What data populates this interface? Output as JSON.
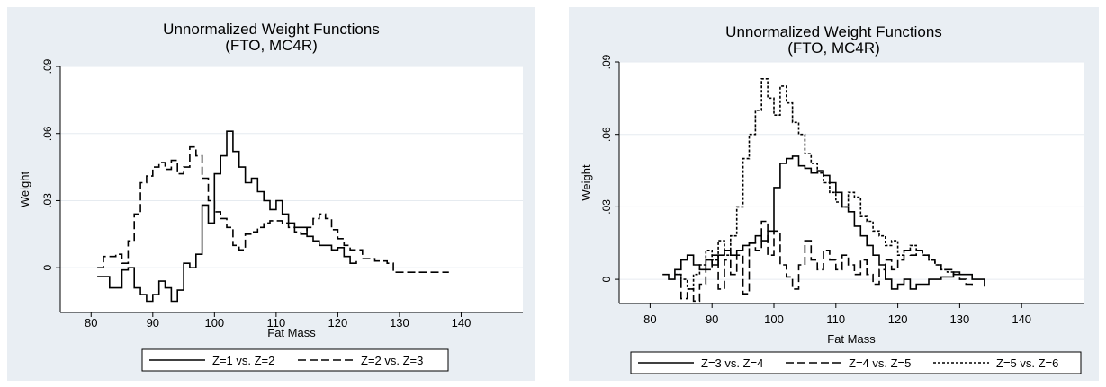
{
  "chart_data": [
    {
      "type": "line",
      "title": "Unnormalized Weight Functions",
      "subtitle": "(FTO, MC4R)",
      "xlabel": "Fat Mass",
      "ylabel": "Weight",
      "xlim": [
        75,
        150
      ],
      "ylim": [
        -0.02,
        0.09
      ],
      "xticks": [
        80,
        90,
        100,
        110,
        120,
        130,
        140
      ],
      "yticks": [
        0,
        0.03,
        0.06,
        0.09
      ],
      "ytick_labels": [
        "0",
        ".03",
        ".06",
        ".09"
      ],
      "grid": true,
      "legend_position": "bottom",
      "series": [
        {
          "name": "Z=1 vs. Z=2",
          "dash": "solid",
          "points": [
            [
              81,
              -0.004
            ],
            [
              83,
              -0.009
            ],
            [
              85,
              -0.001
            ],
            [
              86,
              0.0
            ],
            [
              87,
              -0.009
            ],
            [
              88,
              -0.012
            ],
            [
              89,
              -0.015
            ],
            [
              90,
              -0.012
            ],
            [
              91,
              -0.006
            ],
            [
              92,
              -0.009
            ],
            [
              93,
              -0.015
            ],
            [
              94,
              -0.01
            ],
            [
              95,
              0.002
            ],
            [
              96,
              0.0
            ],
            [
              97,
              0.006
            ],
            [
              98,
              0.028
            ],
            [
              99,
              0.02
            ],
            [
              100,
              0.042
            ],
            [
              101,
              0.05
            ],
            [
              102,
              0.061
            ],
            [
              103,
              0.052
            ],
            [
              104,
              0.045
            ],
            [
              105,
              0.038
            ],
            [
              106,
              0.04
            ],
            [
              107,
              0.034
            ],
            [
              108,
              0.03
            ],
            [
              109,
              0.026
            ],
            [
              110,
              0.03
            ],
            [
              111,
              0.024
            ],
            [
              112,
              0.02
            ],
            [
              113,
              0.018
            ],
            [
              114,
              0.018
            ],
            [
              115,
              0.014
            ],
            [
              116,
              0.012
            ],
            [
              117,
              0.01
            ],
            [
              118,
              0.01
            ],
            [
              119,
              0.008
            ],
            [
              120,
              0.009
            ],
            [
              121,
              0.005
            ],
            [
              122,
              0.002
            ],
            [
              123,
              0.003
            ]
          ]
        },
        {
          "name": "Z=2 vs. Z=3",
          "dash": "dashed",
          "points": [
            [
              81,
              0.0
            ],
            [
              82,
              0.005
            ],
            [
              84,
              0.006
            ],
            [
              85,
              0.002
            ],
            [
              86,
              0.012
            ],
            [
              87,
              0.024
            ],
            [
              88,
              0.038
            ],
            [
              89,
              0.041
            ],
            [
              90,
              0.045
            ],
            [
              91,
              0.047
            ],
            [
              92,
              0.044
            ],
            [
              93,
              0.048
            ],
            [
              94,
              0.042
            ],
            [
              95,
              0.045
            ],
            [
              96,
              0.054
            ],
            [
              97,
              0.05
            ],
            [
              98,
              0.04
            ],
            [
              99,
              0.03
            ],
            [
              100,
              0.025
            ],
            [
              101,
              0.022
            ],
            [
              102,
              0.018
            ],
            [
              103,
              0.01
            ],
            [
              104,
              0.008
            ],
            [
              105,
              0.015
            ],
            [
              106,
              0.016
            ],
            [
              107,
              0.018
            ],
            [
              108,
              0.02
            ],
            [
              109,
              0.021
            ],
            [
              110,
              0.021
            ],
            [
              111,
              0.02
            ],
            [
              112,
              0.018
            ],
            [
              113,
              0.016
            ],
            [
              114,
              0.015
            ],
            [
              115,
              0.018
            ],
            [
              116,
              0.022
            ],
            [
              117,
              0.024
            ],
            [
              118,
              0.022
            ],
            [
              119,
              0.017
            ],
            [
              120,
              0.013
            ],
            [
              121,
              0.01
            ],
            [
              122,
              0.008
            ],
            [
              124,
              0.004
            ],
            [
              126,
              0.003
            ],
            [
              128,
              0.002
            ],
            [
              129,
              -0.002
            ],
            [
              135,
              -0.002
            ],
            [
              138,
              -0.002
            ]
          ]
        }
      ]
    },
    {
      "type": "line",
      "title": "Unnormalized Weight Functions",
      "subtitle": "(FTO, MC4R)",
      "xlabel": "Fat Mass",
      "ylabel": "Weight",
      "xlim": [
        75,
        150
      ],
      "ylim": [
        -0.01,
        0.09
      ],
      "xticks": [
        80,
        90,
        100,
        110,
        120,
        130,
        140
      ],
      "yticks": [
        0,
        0.03,
        0.06,
        0.09
      ],
      "ytick_labels": [
        "0",
        ".03",
        ".06",
        ".09"
      ],
      "grid": true,
      "legend_position": "bottom",
      "series": [
        {
          "name": "Z=3 vs. Z=4",
          "dash": "solid",
          "points": [
            [
              82,
              0.002
            ],
            [
              83,
              0.0
            ],
            [
              84,
              0.004
            ],
            [
              85,
              0.008
            ],
            [
              86,
              0.01
            ],
            [
              87,
              0.006
            ],
            [
              88,
              0.004
            ],
            [
              89,
              0.008
            ],
            [
              90,
              0.006
            ],
            [
              91,
              0.01
            ],
            [
              92,
              0.012
            ],
            [
              93,
              0.01
            ],
            [
              94,
              0.012
            ],
            [
              95,
              0.014
            ],
            [
              96,
              0.015
            ],
            [
              97,
              0.018
            ],
            [
              98,
              0.016
            ],
            [
              99,
              0.02
            ],
            [
              100,
              0.038
            ],
            [
              101,
              0.048
            ],
            [
              102,
              0.05
            ],
            [
              103,
              0.051
            ],
            [
              104,
              0.047
            ],
            [
              105,
              0.046
            ],
            [
              106,
              0.044
            ],
            [
              107,
              0.045
            ],
            [
              108,
              0.043
            ],
            [
              109,
              0.04
            ],
            [
              110,
              0.036
            ],
            [
              111,
              0.03
            ],
            [
              112,
              0.028
            ],
            [
              113,
              0.022
            ],
            [
              114,
              0.018
            ],
            [
              115,
              0.014
            ],
            [
              116,
              0.01
            ],
            [
              117,
              0.006
            ],
            [
              118,
              0.0
            ],
            [
              119,
              -0.004
            ],
            [
              120,
              -0.002
            ],
            [
              121,
              0.0
            ],
            [
              122,
              -0.004
            ],
            [
              123,
              -0.002
            ],
            [
              124,
              -0.002
            ],
            [
              125,
              0.0
            ],
            [
              126,
              0.0
            ],
            [
              127,
              0.001
            ],
            [
              128,
              0.001
            ],
            [
              129,
              0.003
            ],
            [
              130,
              0.002
            ],
            [
              132,
              0.0
            ],
            [
              134,
              -0.003
            ]
          ]
        },
        {
          "name": "Z=4 vs. Z=5",
          "dash": "dashed",
          "points": [
            [
              84,
              0.002
            ],
            [
              85,
              -0.008
            ],
            [
              86,
              -0.004
            ],
            [
              87,
              -0.009
            ],
            [
              88,
              -0.002
            ],
            [
              89,
              0.004
            ],
            [
              90,
              0.01
            ],
            [
              91,
              -0.004
            ],
            [
              92,
              0.008
            ],
            [
              93,
              0.002
            ],
            [
              94,
              0.01
            ],
            [
              95,
              -0.006
            ],
            [
              96,
              0.015
            ],
            [
              97,
              0.012
            ],
            [
              98,
              0.024
            ],
            [
              99,
              0.01
            ],
            [
              100,
              0.02
            ],
            [
              101,
              0.006
            ],
            [
              102,
              0.001
            ],
            [
              103,
              -0.004
            ],
            [
              104,
              0.006
            ],
            [
              105,
              0.016
            ],
            [
              106,
              0.008
            ],
            [
              107,
              0.004
            ],
            [
              108,
              0.012
            ],
            [
              109,
              0.008
            ],
            [
              110,
              0.004
            ],
            [
              111,
              0.01
            ],
            [
              112,
              0.006
            ],
            [
              113,
              0.002
            ],
            [
              114,
              0.008
            ],
            [
              115,
              0.002
            ],
            [
              116,
              -0.002
            ],
            [
              117,
              0.004
            ],
            [
              118,
              0.008
            ],
            [
              119,
              0.004
            ],
            [
              120,
              0.008
            ],
            [
              121,
              0.012
            ],
            [
              122,
              0.01
            ],
            [
              123,
              0.012
            ],
            [
              124,
              0.01
            ],
            [
              125,
              0.008
            ],
            [
              126,
              0.006
            ],
            [
              127,
              0.004
            ],
            [
              128,
              0.004
            ],
            [
              129,
              0.002
            ],
            [
              130,
              0.0
            ],
            [
              131,
              -0.002
            ],
            [
              132,
              -0.003
            ]
          ]
        },
        {
          "name": "Z=5 vs. Z=6",
          "dash": "dotted",
          "points": [
            [
              84,
              0.002
            ],
            [
              85,
              0.0
            ],
            [
              86,
              -0.004
            ],
            [
              87,
              0.002
            ],
            [
              88,
              0.006
            ],
            [
              89,
              0.012
            ],
            [
              90,
              0.008
            ],
            [
              91,
              0.016
            ],
            [
              92,
              0.01
            ],
            [
              93,
              0.018
            ],
            [
              94,
              0.03
            ],
            [
              95,
              0.05
            ],
            [
              96,
              0.06
            ],
            [
              97,
              0.07
            ],
            [
              98,
              0.083
            ],
            [
              99,
              0.075
            ],
            [
              100,
              0.068
            ],
            [
              101,
              0.08
            ],
            [
              102,
              0.073
            ],
            [
              103,
              0.065
            ],
            [
              104,
              0.06
            ],
            [
              105,
              0.052
            ],
            [
              106,
              0.048
            ],
            [
              107,
              0.044
            ],
            [
              108,
              0.04
            ],
            [
              109,
              0.036
            ],
            [
              110,
              0.032
            ],
            [
              111,
              0.03
            ],
            [
              112,
              0.036
            ],
            [
              113,
              0.034
            ],
            [
              114,
              0.026
            ],
            [
              115,
              0.024
            ],
            [
              116,
              0.02
            ],
            [
              117,
              0.018
            ],
            [
              118,
              0.014
            ],
            [
              119,
              0.016
            ],
            [
              120,
              0.01
            ],
            [
              121,
              0.012
            ],
            [
              122,
              0.014
            ],
            [
              123,
              0.012
            ],
            [
              124,
              0.01
            ],
            [
              125,
              0.008
            ],
            [
              126,
              0.006
            ],
            [
              127,
              0.004
            ],
            [
              128,
              0.003
            ],
            [
              129,
              0.002
            ],
            [
              130,
              0.001
            ]
          ]
        }
      ]
    }
  ]
}
